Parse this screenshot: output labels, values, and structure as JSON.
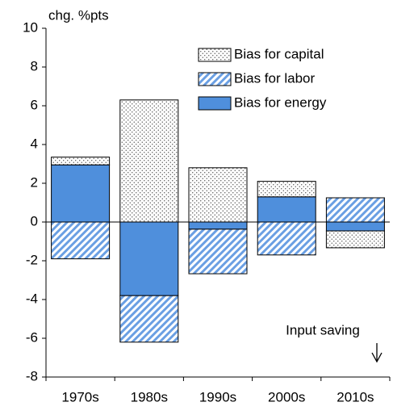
{
  "chart_data": {
    "type": "stacked_bar",
    "y_label": "chg. %pts",
    "annotation": "Input saving",
    "categories": [
      "1970s",
      "1980s",
      "1990s",
      "2000s",
      "2010s"
    ],
    "series": [
      {
        "name": "Bias for capital",
        "color": "#555555",
        "pattern": "dots",
        "values": [
          0.4,
          6.3,
          2.8,
          0.8,
          -0.87
        ]
      },
      {
        "name": "Bias for labor",
        "color": "#4f8fdc",
        "pattern": "hatch",
        "values": [
          -1.9,
          -2.4,
          -2.3,
          -1.7,
          1.25
        ]
      },
      {
        "name": "Bias for energy",
        "color": "#4f8fdc",
        "pattern": "solid",
        "values": [
          2.95,
          -3.8,
          -0.37,
          1.3,
          -0.46
        ]
      }
    ],
    "ylim": [
      -8,
      10
    ],
    "yticks": [
      -8,
      -6,
      -4,
      -2,
      0,
      2,
      4,
      6,
      8,
      10
    ]
  }
}
